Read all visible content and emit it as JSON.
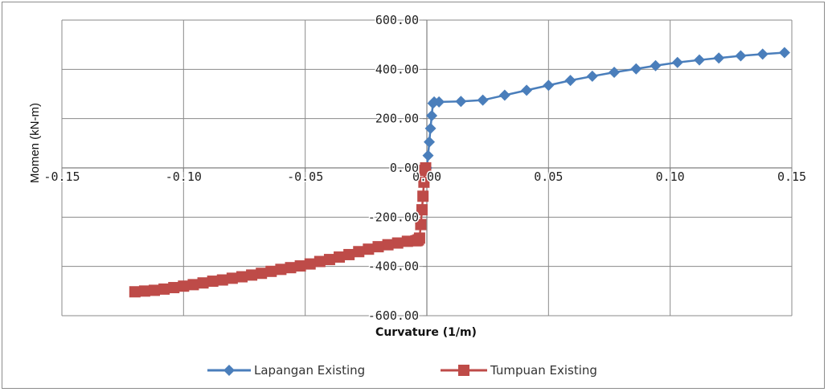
{
  "chart_data": {
    "type": "scatter",
    "title": "",
    "xlabel": "Curvature (1/m)",
    "ylabel": "Momen (kN-m)",
    "xlim": [
      -0.15,
      0.15
    ],
    "ylim": [
      -600,
      600
    ],
    "x_ticks": [
      "-0.15",
      "-0.10",
      "-0.05",
      "0.00",
      "0.05",
      "0.10",
      "0.15"
    ],
    "y_ticks": [
      "600.00",
      "400.00",
      "200.00",
      "0.00",
      "-200.00",
      "-400.00",
      "-600.00"
    ],
    "grid": true,
    "legend_position": "bottom",
    "series": [
      {
        "name": "Lapangan Existing",
        "color": "#4a7ebb",
        "marker": "diamond",
        "x": [
          0,
          0.0005,
          0.001,
          0.0015,
          0.002,
          0.0025,
          0.003,
          0.005,
          0.014,
          0.023,
          0.032,
          0.041,
          0.05,
          0.059,
          0.068,
          0.077,
          0.086,
          0.094,
          0.103,
          0.112,
          0.12,
          0.129,
          0.138,
          0.147
        ],
        "y": [
          0,
          50,
          105,
          160,
          212,
          262,
          268,
          268,
          270,
          275,
          295,
          315,
          335,
          355,
          372,
          388,
          402,
          415,
          428,
          438,
          446,
          455,
          462,
          468
        ]
      },
      {
        "name": "Tumpuan Existing",
        "color": "#be4b48",
        "marker": "square",
        "x": [
          -0.0005,
          -0.0008,
          -0.0012,
          -0.0016,
          -0.002,
          -0.0025,
          -0.003,
          -0.0035,
          -0.004,
          -0.0045,
          -0.008,
          -0.012,
          -0.016,
          -0.02,
          -0.024,
          -0.028,
          -0.032,
          -0.036,
          -0.04,
          -0.044,
          -0.048,
          -0.052,
          -0.056,
          -0.06,
          -0.064,
          -0.068,
          -0.072,
          -0.076,
          -0.08,
          -0.084,
          -0.088,
          -0.092,
          -0.096,
          -0.1,
          -0.104,
          -0.108,
          -0.112,
          -0.116,
          -0.12
        ],
        "y": [
          0,
          -10,
          -58,
          -115,
          -170,
          -230,
          -285,
          -292,
          -295,
          -296,
          -298,
          -305,
          -312,
          -320,
          -330,
          -340,
          -352,
          -362,
          -372,
          -380,
          -390,
          -398,
          -405,
          -412,
          -420,
          -428,
          -435,
          -442,
          -448,
          -455,
          -460,
          -467,
          -474,
          -480,
          -486,
          -492,
          -497,
          -500,
          -503
        ]
      }
    ]
  }
}
